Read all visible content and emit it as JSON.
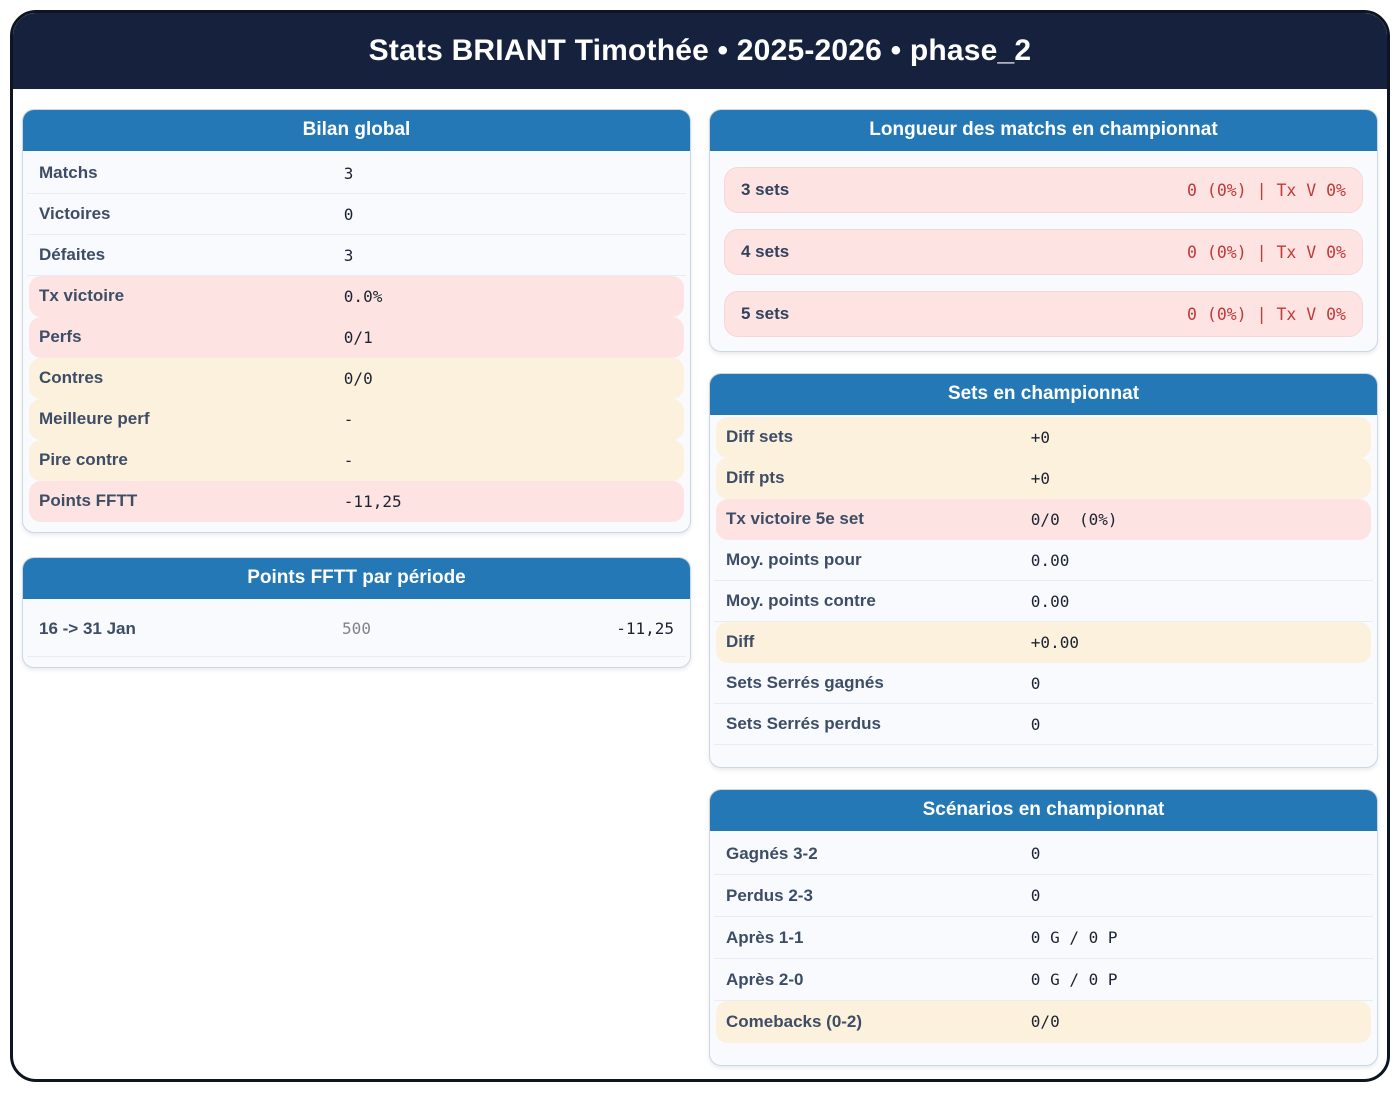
{
  "header": {
    "title": "Stats BRIANT Timothée • 2025-2026 • phase_2"
  },
  "colors": {
    "title_bar_navy": "#16213e",
    "card_header_blue": "#2478b5",
    "highlight_pink": "#fde4e2",
    "highlight_cream": "#fcf1dc",
    "negative_red": "#c03a3a"
  },
  "cards": {
    "bilan": {
      "title": "Bilan global",
      "rows": [
        {
          "label": "Matchs",
          "value": "3"
        },
        {
          "label": "Victoires",
          "value": "0"
        },
        {
          "label": "Défaites",
          "value": "3"
        },
        {
          "label": "Tx victoire",
          "value": "0.0%"
        },
        {
          "label": "Perfs",
          "value": "0/1"
        },
        {
          "label": "Contres",
          "value": "0/0"
        },
        {
          "label": "Meilleure perf",
          "value": "-"
        },
        {
          "label": "Pire contre",
          "value": "-"
        },
        {
          "label": "Points FFTT",
          "value": "-11,25"
        }
      ]
    },
    "periode": {
      "title": "Points FFTT par période",
      "rows": [
        {
          "label": "16 -> 31 Jan",
          "points": "500",
          "delta": "-11,25"
        }
      ]
    },
    "longueur": {
      "title": "Longueur des matchs en championnat",
      "rows": [
        {
          "label": "3 sets",
          "value": "0 (0%) | Tx V 0%"
        },
        {
          "label": "4 sets",
          "value": "0 (0%) | Tx V 0%"
        },
        {
          "label": "5 sets",
          "value": "0 (0%) | Tx V 0%"
        }
      ]
    },
    "sets": {
      "title": "Sets en championnat",
      "rows": [
        {
          "label": "Diff sets",
          "value": "+0"
        },
        {
          "label": "Diff pts",
          "value": "+0"
        },
        {
          "label": "Tx victoire 5e set",
          "value": "0/0  (0%)"
        },
        {
          "label": "Moy. points pour",
          "value": "0.00"
        },
        {
          "label": "Moy. points contre",
          "value": "0.00"
        },
        {
          "label": "Diff",
          "value": "+0.00"
        },
        {
          "label": "Sets Serrés gagnés",
          "value": "0"
        },
        {
          "label": "Sets Serrés perdus",
          "value": "0"
        }
      ]
    },
    "scenarios": {
      "title": "Scénarios en championnat",
      "rows": [
        {
          "label": "Gagnés 3-2",
          "value": "0"
        },
        {
          "label": "Perdus 2-3",
          "value": "0"
        },
        {
          "label": "Après 1-1",
          "value": "0 G / 0 P"
        },
        {
          "label": "Après 2-0",
          "value": "0 G / 0 P"
        },
        {
          "label": "Comebacks (0-2)",
          "value": "0/0"
        }
      ]
    }
  }
}
